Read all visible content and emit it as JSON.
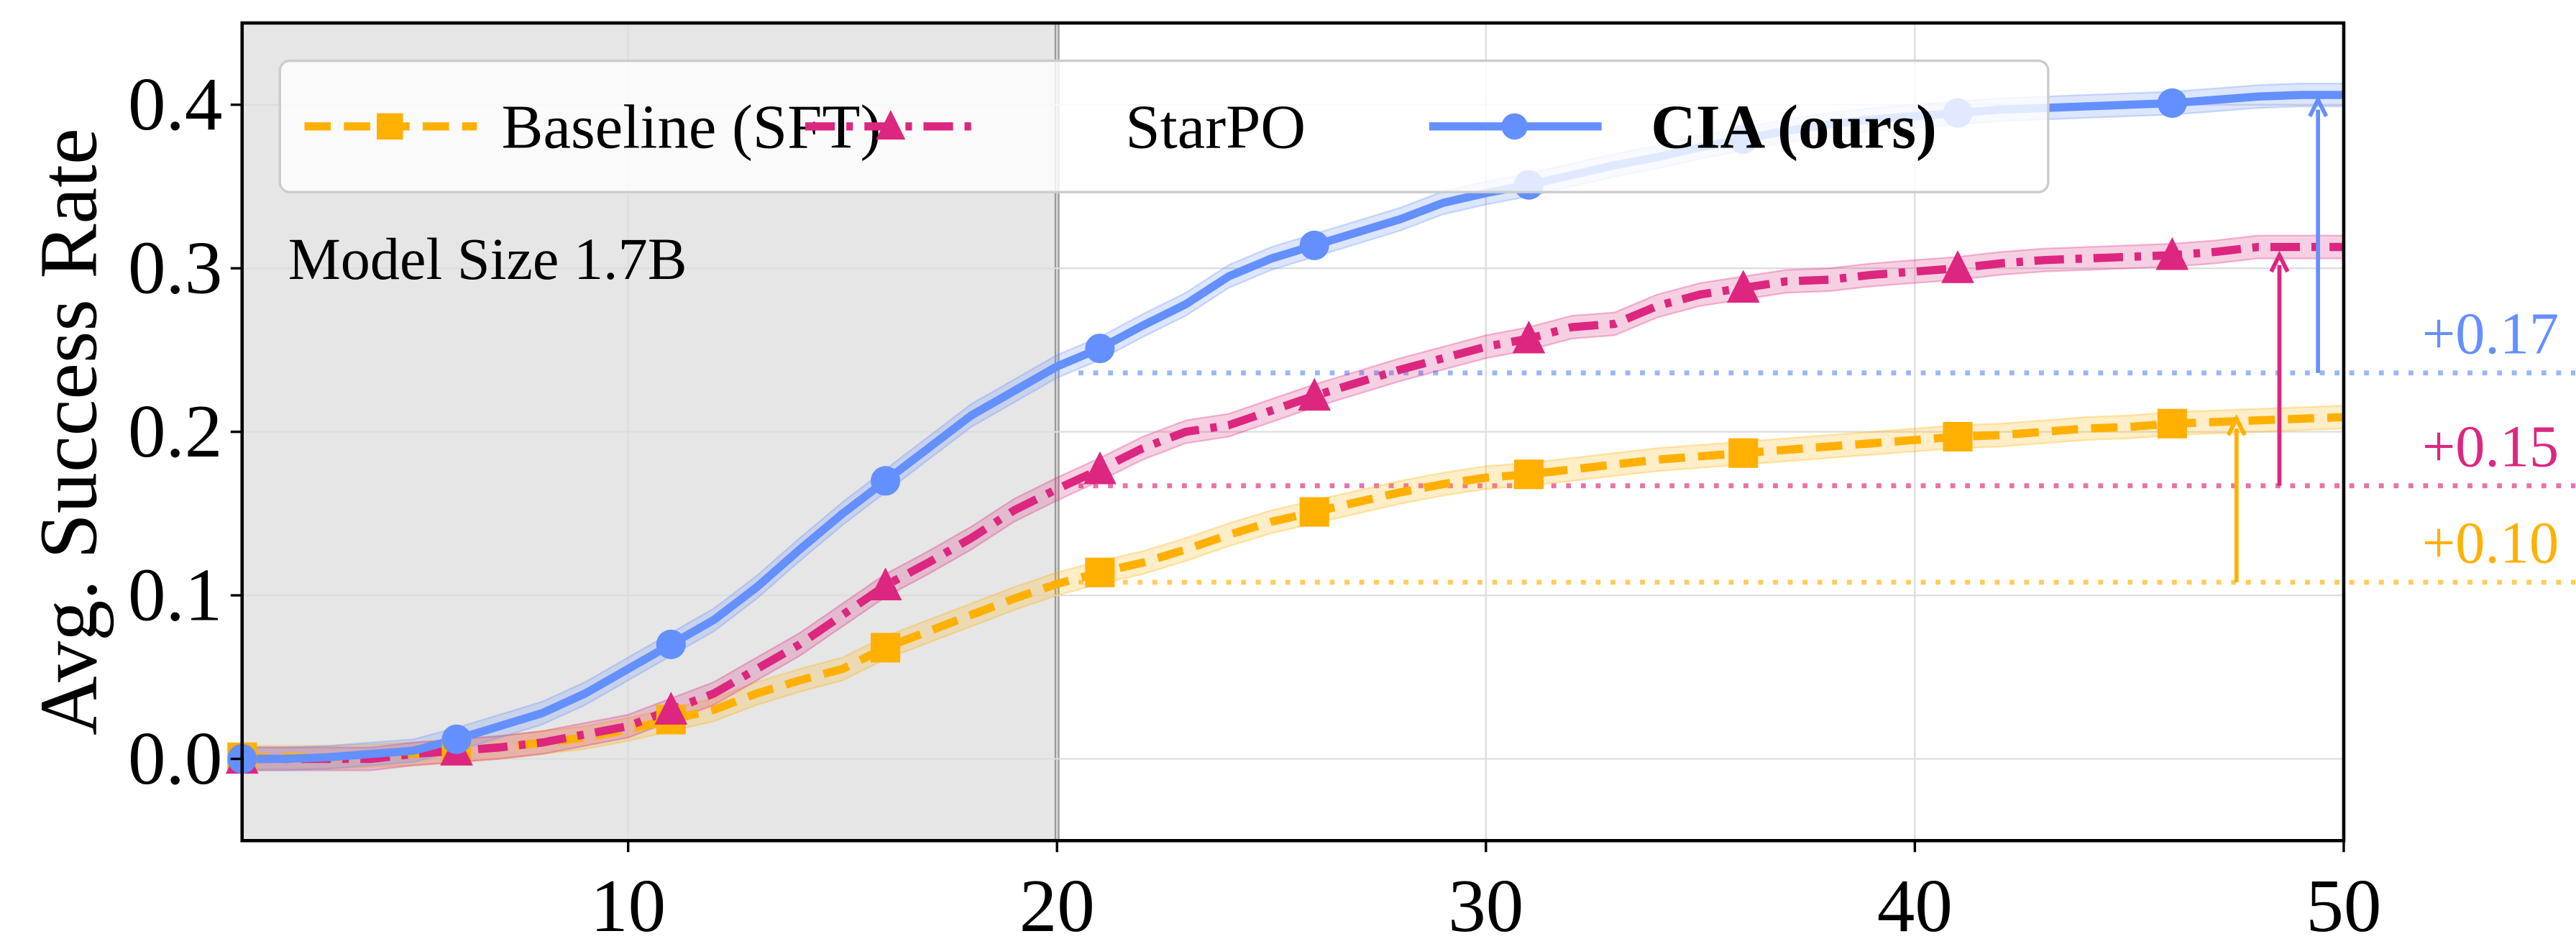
{
  "chart_data": {
    "type": "line",
    "title": "",
    "xlabel": "",
    "ylabel": "Avg. Success Rate",
    "xlim": [
      1,
      50
    ],
    "ylim": [
      -0.05,
      0.45
    ],
    "xticks": [
      10,
      20,
      30,
      40,
      50
    ],
    "yticks": [
      0.0,
      0.1,
      0.2,
      0.3,
      0.4
    ],
    "xtick_labels": [
      "10",
      "20",
      "30",
      "40",
      "50"
    ],
    "ytick_labels": [
      "0.0",
      "0.1",
      "0.2",
      "0.3",
      "0.4"
    ],
    "grid": true,
    "legend_position": "top",
    "annotation": "Model Size 1.7B",
    "shaded_region": {
      "x_from": 1,
      "x_to": 20,
      "color": "#e6e6e6"
    },
    "x": [
      1,
      2,
      3,
      4,
      5,
      6,
      7,
      8,
      9,
      10,
      11,
      12,
      13,
      14,
      15,
      16,
      17,
      18,
      19,
      20,
      21,
      22,
      23,
      24,
      25,
      26,
      27,
      28,
      29,
      30,
      31,
      32,
      33,
      34,
      35,
      36,
      37,
      38,
      39,
      40,
      41,
      42,
      43,
      44,
      45,
      46,
      47,
      48,
      49,
      50
    ],
    "marker_x": [
      1,
      6,
      11,
      16,
      21,
      26,
      31,
      36,
      41,
      46
    ],
    "series": [
      {
        "name": "Baseline (SFT)",
        "color": "#ffb000",
        "style": "dashed",
        "marker": "square",
        "values": [
          0.001,
          0.001,
          0.001,
          0.002,
          0.003,
          0.005,
          0.007,
          0.01,
          0.013,
          0.018,
          0.024,
          0.03,
          0.04,
          0.048,
          0.055,
          0.068,
          0.078,
          0.088,
          0.098,
          0.107,
          0.114,
          0.12,
          0.128,
          0.137,
          0.145,
          0.151,
          0.157,
          0.163,
          0.168,
          0.172,
          0.174,
          0.177,
          0.18,
          0.183,
          0.185,
          0.187,
          0.189,
          0.191,
          0.193,
          0.195,
          0.197,
          0.198,
          0.2,
          0.202,
          0.203,
          0.205,
          0.206,
          0.207,
          0.208,
          0.209
        ]
      },
      {
        "name": "StarPO",
        "color": "#dc267f",
        "style": "dashdot",
        "marker": "triangle",
        "values": [
          0,
          0,
          0,
          0,
          0.003,
          0.005,
          0.007,
          0.01,
          0.015,
          0.02,
          0.03,
          0.04,
          0.055,
          0.07,
          0.088,
          0.106,
          0.12,
          0.135,
          0.152,
          0.165,
          0.177,
          0.19,
          0.2,
          0.204,
          0.213,
          0.222,
          0.23,
          0.238,
          0.245,
          0.252,
          0.257,
          0.264,
          0.266,
          0.277,
          0.284,
          0.288,
          0.292,
          0.293,
          0.296,
          0.298,
          0.3,
          0.303,
          0.305,
          0.306,
          0.307,
          0.308,
          0.31,
          0.313,
          0.313,
          0.313
        ]
      },
      {
        "name": "CIA (ours)",
        "color": "#648fff",
        "style": "solid",
        "marker": "circle",
        "values": [
          0,
          0,
          0.001,
          0.003,
          0.005,
          0.012,
          0.02,
          0.028,
          0.04,
          0.055,
          0.07,
          0.085,
          0.105,
          0.128,
          0.15,
          0.17,
          0.19,
          0.21,
          0.225,
          0.24,
          0.251,
          0.265,
          0.278,
          0.295,
          0.306,
          0.314,
          0.322,
          0.33,
          0.34,
          0.346,
          0.351,
          0.357,
          0.363,
          0.368,
          0.374,
          0.379,
          0.384,
          0.388,
          0.391,
          0.393,
          0.395,
          0.397,
          0.398,
          0.399,
          0.4,
          0.401,
          0.403,
          0.405,
          0.406,
          0.406
        ]
      }
    ],
    "improvements": [
      {
        "label": "+0.10",
        "color": "#ffb000",
        "from": 0.108,
        "to": 0.21,
        "arrow_x": 47.5
      },
      {
        "label": "+0.15",
        "color": "#dc267f",
        "from": 0.167,
        "to": 0.31,
        "arrow_x": 48.5
      },
      {
        "label": "+0.17",
        "color": "#648fff",
        "from": 0.236,
        "to": 0.405,
        "arrow_x": 49.4
      }
    ]
  }
}
